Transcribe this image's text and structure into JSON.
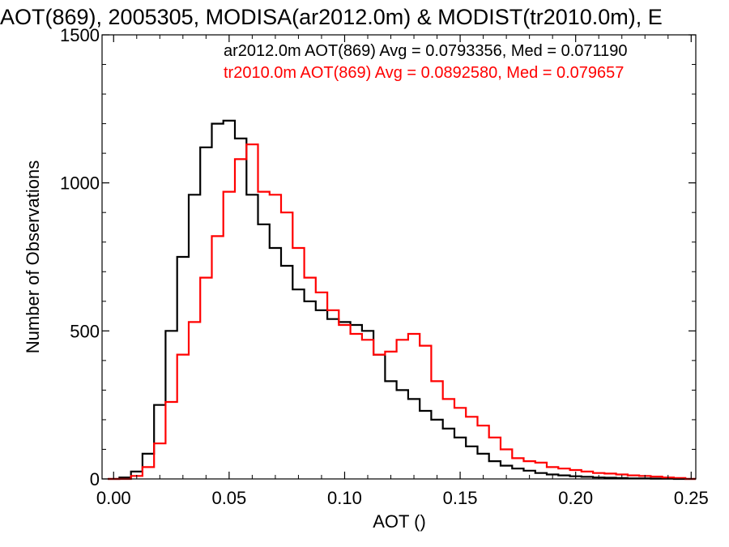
{
  "chart_data": {
    "type": "step-histogram",
    "title": "AOT(869), 2005305, MODISA(ar2012.0m) & MODIST(tr2010.0m), E",
    "xlabel": "AOT ()",
    "ylabel": "Number of Observations",
    "xlim": [
      -0.005,
      0.252
    ],
    "ylim": [
      0,
      1500
    ],
    "x_ticks": [
      0.0,
      0.05,
      0.1,
      0.15,
      0.2,
      0.25
    ],
    "x_tick_labels": [
      "0.00",
      "0.05",
      "0.10",
      "0.15",
      "0.20",
      "0.25"
    ],
    "y_ticks": [
      0,
      500,
      1000,
      1500
    ],
    "y_tick_labels": [
      "0",
      "500",
      "1000",
      "1500"
    ],
    "grid": false,
    "legend_position": "top-right",
    "series": [
      {
        "name": "ar2012.0m AOT(869) Avg = 0.0793356, Med = 0.071190",
        "color": "#000000",
        "x": [
          0.0,
          0.005,
          0.01,
          0.015,
          0.02,
          0.025,
          0.03,
          0.035,
          0.04,
          0.045,
          0.05,
          0.055,
          0.06,
          0.065,
          0.07,
          0.075,
          0.08,
          0.085,
          0.09,
          0.095,
          0.1,
          0.105,
          0.11,
          0.115,
          0.12,
          0.125,
          0.13,
          0.135,
          0.14,
          0.145,
          0.15,
          0.155,
          0.16,
          0.165,
          0.17,
          0.175,
          0.18,
          0.185,
          0.19,
          0.195,
          0.2,
          0.205,
          0.21,
          0.215,
          0.22,
          0.225,
          0.23,
          0.235,
          0.24,
          0.245,
          0.25
        ],
        "y": [
          0,
          5,
          25,
          85,
          250,
          500,
          750,
          960,
          1120,
          1200,
          1210,
          1150,
          960,
          860,
          780,
          720,
          640,
          600,
          570,
          540,
          530,
          520,
          500,
          420,
          330,
          300,
          270,
          230,
          200,
          170,
          140,
          110,
          85,
          60,
          45,
          35,
          28,
          20,
          15,
          12,
          9,
          7,
          5,
          4,
          3,
          2,
          2,
          1,
          1,
          0,
          0
        ]
      },
      {
        "name": "tr2010.0m AOT(869) Avg = 0.0892580, Med = 0.079657",
        "color": "#ff0000",
        "x": [
          0.0,
          0.005,
          0.01,
          0.015,
          0.02,
          0.025,
          0.03,
          0.035,
          0.04,
          0.045,
          0.05,
          0.055,
          0.06,
          0.065,
          0.07,
          0.075,
          0.08,
          0.085,
          0.09,
          0.095,
          0.1,
          0.105,
          0.11,
          0.115,
          0.12,
          0.125,
          0.13,
          0.135,
          0.14,
          0.145,
          0.15,
          0.155,
          0.16,
          0.165,
          0.17,
          0.175,
          0.18,
          0.185,
          0.19,
          0.195,
          0.2,
          0.205,
          0.21,
          0.215,
          0.22,
          0.225,
          0.23,
          0.235,
          0.24,
          0.245,
          0.25
        ],
        "y": [
          0,
          0,
          10,
          40,
          120,
          260,
          420,
          530,
          680,
          820,
          970,
          1080,
          1130,
          970,
          960,
          900,
          780,
          680,
          630,
          570,
          520,
          490,
          470,
          420,
          430,
          470,
          490,
          450,
          330,
          270,
          240,
          210,
          180,
          140,
          100,
          70,
          60,
          55,
          40,
          35,
          30,
          25,
          20,
          18,
          15,
          12,
          10,
          8,
          5,
          3,
          0
        ]
      }
    ]
  }
}
